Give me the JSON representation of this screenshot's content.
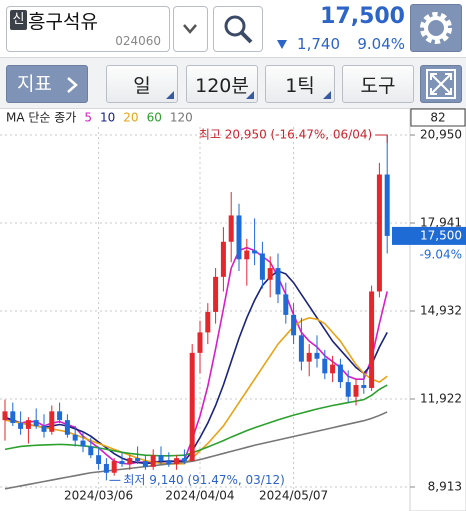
{
  "header": {
    "logo": "신",
    "name": "흥구석유",
    "code": "024060",
    "price": "17,500",
    "change": "1,740",
    "change_pct": "9.04%"
  },
  "toolbar": {
    "buttons": [
      "지표",
      "일",
      "120분",
      "1틱",
      "도구"
    ]
  },
  "chart_data": {
    "type": "candlestick",
    "legend_title": "MA 단순 종가",
    "corner_label": "82",
    "last_price": {
      "value": 17500,
      "label": "17,500"
    },
    "last_change": "-9.04%",
    "annotations": [
      "최고 20,950 (-16.47%, 06/04)",
      "최저 9,140 (91.47%, 03/12)"
    ],
    "categories": [
      null,
      null,
      null,
      null,
      null,
      null,
      null,
      null,
      null,
      null,
      null,
      null,
      "2024/03/06",
      null,
      null,
      null,
      null,
      null,
      null,
      null,
      null,
      null,
      null,
      null,
      null,
      "2024/04/04",
      null,
      null,
      null,
      null,
      null,
      null,
      null,
      null,
      null,
      null,
      null,
      "2024/05/07",
      null,
      null,
      null,
      null,
      null,
      null,
      null,
      null,
      null,
      null,
      null,
      null
    ],
    "open": [
      11200,
      11500,
      11100,
      10900,
      11200,
      11000,
      10800,
      11500,
      11200,
      10700,
      10500,
      10300,
      10000,
      9700,
      9400,
      9800,
      9700,
      9900,
      9800,
      9600,
      10000,
      9800,
      9700,
      9900,
      9800,
      13500,
      14200,
      14900,
      16100,
      17300,
      18200,
      16700,
      17000,
      16900,
      16000,
      16400,
      15500,
      14800,
      14100,
      13200,
      13500,
      13300,
      12800,
      13100,
      12500,
      12000,
      12400,
      12300,
      15600,
      19600
    ],
    "high": [
      11900,
      11800,
      11500,
      11300,
      11600,
      11400,
      11700,
      11800,
      11400,
      11000,
      10800,
      10600,
      10300,
      9900,
      9900,
      10100,
      10000,
      10300,
      10000,
      10200,
      10300,
      10100,
      10000,
      10200,
      13800,
      14600,
      15200,
      16400,
      17800,
      19000,
      18600,
      17400,
      18100,
      17300,
      16800,
      16900,
      15900,
      15200,
      14700,
      13800,
      14100,
      13600,
      13400,
      13300,
      12900,
      12600,
      12800,
      15800,
      20000,
      20950
    ],
    "low": [
      10500,
      11000,
      10700,
      10400,
      10900,
      10600,
      10700,
      11100,
      10600,
      10300,
      10100,
      9900,
      9500,
      9140,
      9300,
      9600,
      9500,
      9700,
      9500,
      9500,
      9700,
      9600,
      9500,
      9700,
      9800,
      12800,
      13800,
      14500,
      15600,
      16600,
      16300,
      15800,
      16500,
      15700,
      15400,
      15200,
      14500,
      13800,
      12900,
      12700,
      13000,
      12600,
      12500,
      12300,
      11800,
      11700,
      12100,
      12200,
      15400,
      16900
    ],
    "close": [
      11500,
      11100,
      10900,
      11200,
      11000,
      10800,
      11500,
      11200,
      10700,
      10500,
      10300,
      10000,
      9700,
      9400,
      9800,
      9700,
      9900,
      9800,
      9600,
      10000,
      9800,
      9700,
      9900,
      9800,
      13500,
      14200,
      14900,
      16100,
      17300,
      18200,
      16700,
      17000,
      16900,
      16000,
      16400,
      15500,
      14800,
      14100,
      13200,
      13500,
      13300,
      12800,
      13100,
      12500,
      12000,
      12400,
      12300,
      15600,
      19600,
      17500
    ],
    "up_color": "#e4262d",
    "down_color": "#1e6bd6",
    "series": [
      {
        "name": "5",
        "color": "#d61fc8",
        "values": [
          11200,
          11200,
          11100,
          11150,
          11150,
          11000,
          11100,
          11150,
          11050,
          10950,
          10650,
          10450,
          10250,
          10020,
          9800,
          9720,
          9700,
          9760,
          9760,
          9780,
          9780,
          9780,
          9800,
          9840,
          10540,
          11340,
          12360,
          13640,
          15000,
          16400,
          17000,
          17100,
          17000,
          16800,
          16600,
          16100,
          15500,
          14800,
          14200,
          13900,
          13700,
          13400,
          13200,
          13000,
          12700,
          12600,
          12600,
          13300,
          14500,
          15600
        ]
      },
      {
        "name": "10",
        "color": "#1a237e",
        "values": [
          11300,
          11200,
          11100,
          11050,
          11000,
          10950,
          11000,
          11050,
          11000,
          10900,
          10800,
          10650,
          10450,
          10250,
          10050,
          9900,
          9800,
          9750,
          9720,
          9740,
          9780,
          9800,
          9790,
          9780,
          10150,
          10600,
          11100,
          11700,
          12400,
          13200,
          14000,
          14700,
          15300,
          15800,
          16100,
          16300,
          16200,
          15900,
          15500,
          15100,
          14700,
          14300,
          13900,
          13600,
          13300,
          13000,
          12800,
          13100,
          13700,
          14200
        ]
      },
      {
        "name": "20",
        "color": "#e8a317",
        "values": [
          11200,
          11150,
          11100,
          11050,
          11000,
          10950,
          10900,
          10850,
          10800,
          10700,
          10600,
          10500,
          10400,
          10300,
          10200,
          10100,
          10000,
          9900,
          9820,
          9760,
          9720,
          9700,
          9700,
          9710,
          9900,
          10150,
          10400,
          10700,
          11000,
          11400,
          11800,
          12200,
          12600,
          13000,
          13400,
          13800,
          14100,
          14400,
          14600,
          14700,
          14650,
          14500,
          14200,
          13900,
          13500,
          13100,
          12800,
          12600,
          12500,
          12700
        ]
      },
      {
        "name": "60",
        "color": "#2ca02c",
        "values": [
          10200,
          10250,
          10300,
          10320,
          10340,
          10350,
          10360,
          10370,
          10360,
          10340,
          10320,
          10290,
          10250,
          10200,
          10150,
          10100,
          10060,
          10030,
          10000,
          9990,
          9980,
          9980,
          9990,
          10000,
          10080,
          10180,
          10280,
          10390,
          10500,
          10620,
          10730,
          10840,
          10940,
          11030,
          11120,
          11210,
          11290,
          11370,
          11440,
          11510,
          11580,
          11640,
          11700,
          11750,
          11800,
          11850,
          11900,
          12050,
          12250,
          12400
        ]
      },
      {
        "name": "120",
        "color": "#777777",
        "values": [
          8850,
          8900,
          8950,
          9000,
          9050,
          9100,
          9150,
          9200,
          9250,
          9300,
          9350,
          9400,
          9430,
          9460,
          9490,
          9520,
          9550,
          9580,
          9610,
          9640,
          9670,
          9700,
          9730,
          9760,
          9790,
          9850,
          9920,
          9990,
          10060,
          10130,
          10200,
          10270,
          10340,
          10400,
          10460,
          10520,
          10580,
          10640,
          10700,
          10760,
          10820,
          10880,
          10940,
          11000,
          11060,
          11120,
          11180,
          11260,
          11360,
          11480
        ]
      }
    ],
    "ylim": [
      8810,
      21225
    ],
    "yticks": [
      {
        "value": 8913,
        "label": "8,913"
      },
      {
        "value": 11922,
        "label": "11,922"
      },
      {
        "value": 14932,
        "label": "14,932"
      },
      {
        "value": 17941,
        "label": "17,941"
      },
      {
        "value": 20950,
        "label": "20,950"
      }
    ],
    "grid": true
  }
}
